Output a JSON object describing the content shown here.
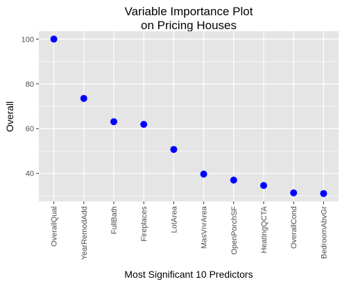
{
  "chart_data": {
    "type": "scatter",
    "title_lines": [
      "Variable Importance Plot",
      "on Pricing Houses"
    ],
    "xlabel": "Most Significant 10 Predictors",
    "ylabel": "Overall",
    "categories": [
      "OverallQual",
      "YearRemodAdd",
      "FullBath",
      "Fireplaces",
      "LotArea",
      "MasVnrArea",
      "OpenPorchSF",
      "HeatingQCTA",
      "OverallCond",
      "BedroomAbvGr"
    ],
    "values": [
      100,
      73.5,
      63.1,
      61.9,
      50.7,
      39.7,
      37.0,
      34.6,
      31.3,
      31.0
    ],
    "yticks": [
      40,
      60,
      80,
      100
    ],
    "ylim": [
      27.5,
      103.5
    ],
    "grid": true,
    "point_color": "#0000ff",
    "panel_color": "#e5e5e5",
    "grid_color": "#ffffff"
  }
}
